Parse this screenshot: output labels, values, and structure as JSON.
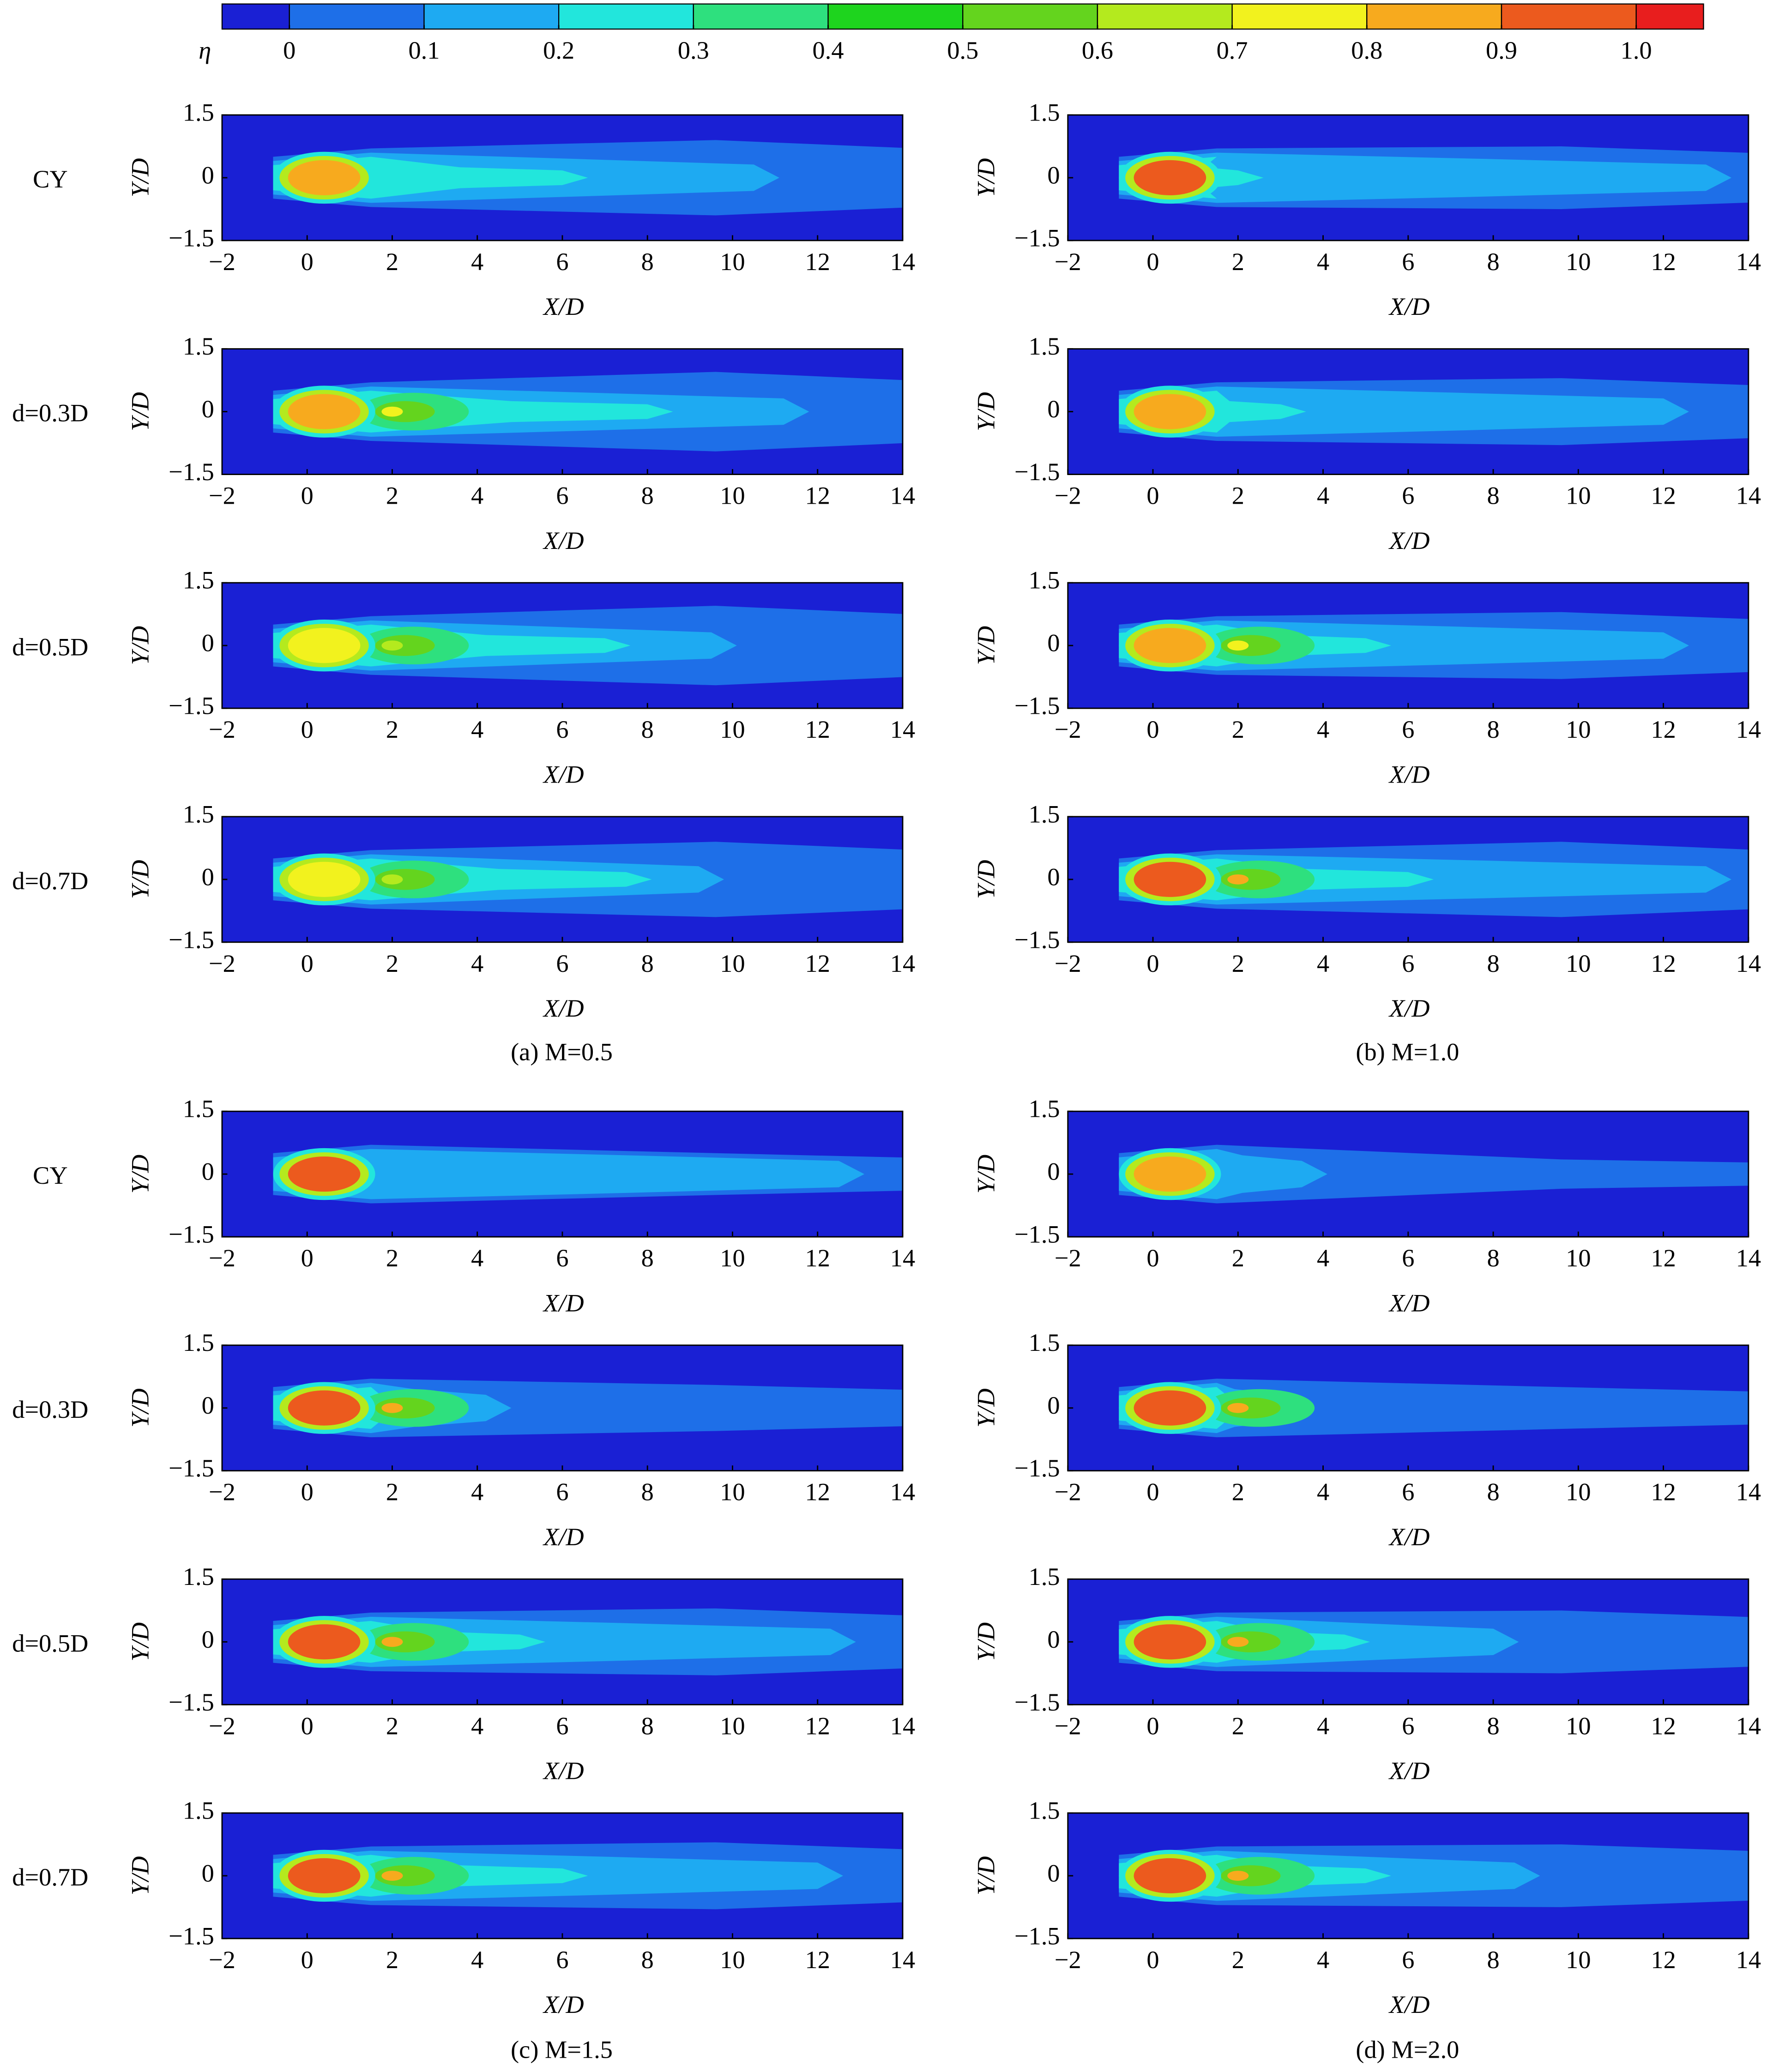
{
  "chart_data": {
    "type": "contour-grid",
    "colorbar": {
      "label": "η",
      "lim": [
        -0.05,
        1.05
      ],
      "ticks": [
        0,
        0.1,
        0.2,
        0.3,
        0.4,
        0.5,
        0.6,
        0.7,
        0.8,
        0.9,
        {
          "value": 1,
          "label": "1.0"
        }
      ],
      "colors": [
        "#1a20d4",
        "#1e6fe8",
        "#1eaaf2",
        "#22e6dc",
        "#2ee07e",
        "#1ed41e",
        "#64d41e",
        "#b4ea1e",
        "#f2f21e",
        "#f7aa1e",
        "#ec5a1e",
        "#e81e1e"
      ]
    },
    "xlabel": "X/D",
    "ylabel": "Y/D",
    "xlim": [
      -2,
      14
    ],
    "xticks": [
      {
        "value": -2,
        "label": "−2"
      },
      0,
      2,
      4,
      6,
      8,
      10,
      12,
      14
    ],
    "ylim": [
      -1.5,
      1.5
    ],
    "yticks": [
      {
        "value": -1.5,
        "label": "−1.5"
      },
      0,
      1.5
    ],
    "row_labels": [
      "CY",
      "d=0.3D",
      "d=0.5D",
      "d=0.7D"
    ],
    "panels": [
      {
        "caption": "(a) M=0.5"
      },
      {
        "caption": "(b) M=1.0"
      },
      {
        "caption": "(c) M=1.5"
      },
      {
        "caption": "(d) M=2.0"
      }
    ]
  }
}
